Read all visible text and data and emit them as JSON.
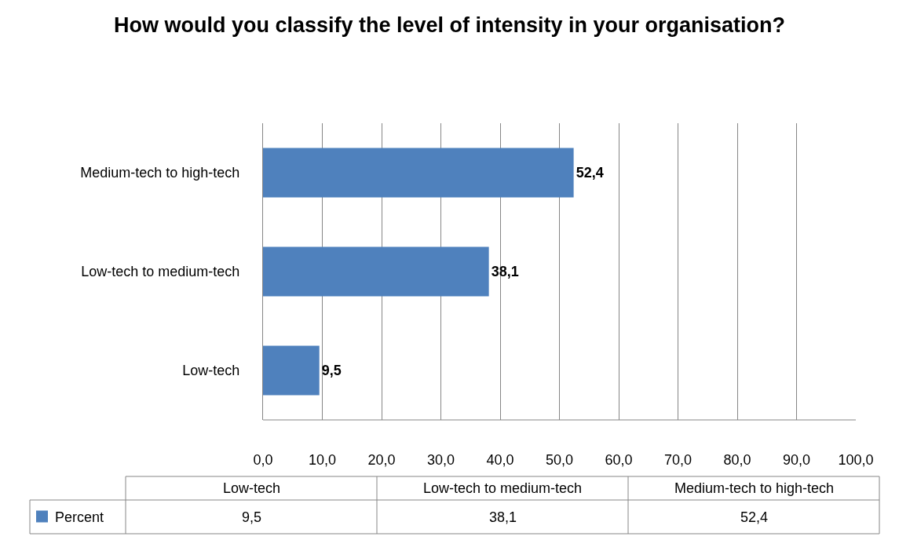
{
  "chart_data": {
    "type": "bar",
    "orientation": "horizontal",
    "title": "How would you classify the level of intensity in your organisation?",
    "categories": [
      "Medium-tech to high-tech",
      "Low-tech to medium-tech",
      "Low-tech"
    ],
    "series": [
      {
        "name": "Percent",
        "color": "#4f81bd",
        "values": [
          52.4,
          38.1,
          9.5
        ],
        "value_labels": [
          "52,4",
          "38,1",
          "9,5"
        ]
      }
    ],
    "xlim": [
      0,
      100
    ],
    "xticks": [
      {
        "value": 0,
        "label": "0,0"
      },
      {
        "value": 10,
        "label": "10,0"
      },
      {
        "value": 20,
        "label": "20,0"
      },
      {
        "value": 30,
        "label": "30,0"
      },
      {
        "value": 40,
        "label": "40,0"
      },
      {
        "value": 50,
        "label": "50,0"
      },
      {
        "value": 60,
        "label": "60,0"
      },
      {
        "value": 70,
        "label": "70,0"
      },
      {
        "value": 80,
        "label": "80,0"
      },
      {
        "value": 90,
        "label": "90,0"
      },
      {
        "value": 100,
        "label": "100,0"
      }
    ],
    "grid": "x",
    "legend": "bottom"
  }
}
